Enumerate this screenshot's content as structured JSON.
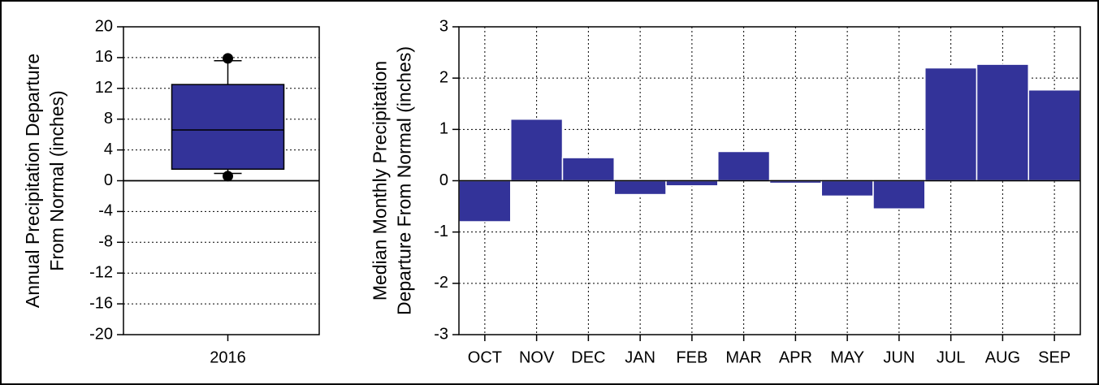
{
  "chart_data": [
    {
      "type": "box",
      "ylabel": [
        "Annual Precipitation Departure",
        "From Normal (inches)"
      ],
      "categories": [
        "2016"
      ],
      "boxes": [
        {
          "whisker_low": 0.95,
          "q1": 1.5,
          "median": 6.6,
          "q3": 12.5,
          "whisker_high": 15.6,
          "outliers": [
            0.6,
            15.9
          ]
        }
      ],
      "color": "#333399",
      "ylim": [
        -20,
        20
      ],
      "yticks": [
        -20,
        -16,
        -12,
        -8,
        -4,
        0,
        4,
        8,
        12,
        16,
        20
      ],
      "grid_x": false,
      "grid_y": true,
      "zero_line": true
    },
    {
      "type": "bar",
      "ylabel": [
        "Median Monthly Precipitation",
        "Departure From Normal (inches)"
      ],
      "categories": [
        "OCT",
        "NOV",
        "DEC",
        "JAN",
        "FEB",
        "MAR",
        "APR",
        "MAY",
        "JUN",
        "JUL",
        "AUG",
        "SEP"
      ],
      "values": [
        -0.8,
        1.2,
        0.45,
        -0.27,
        -0.1,
        0.57,
        -0.05,
        -0.3,
        -0.55,
        2.2,
        2.27,
        1.77
      ],
      "color": "#333399",
      "ylim": [
        -3,
        3
      ],
      "yticks": [
        -3,
        -2,
        -1,
        0,
        1,
        2,
        3
      ],
      "grid_x": true,
      "grid_y": true,
      "zero_line": true
    }
  ]
}
